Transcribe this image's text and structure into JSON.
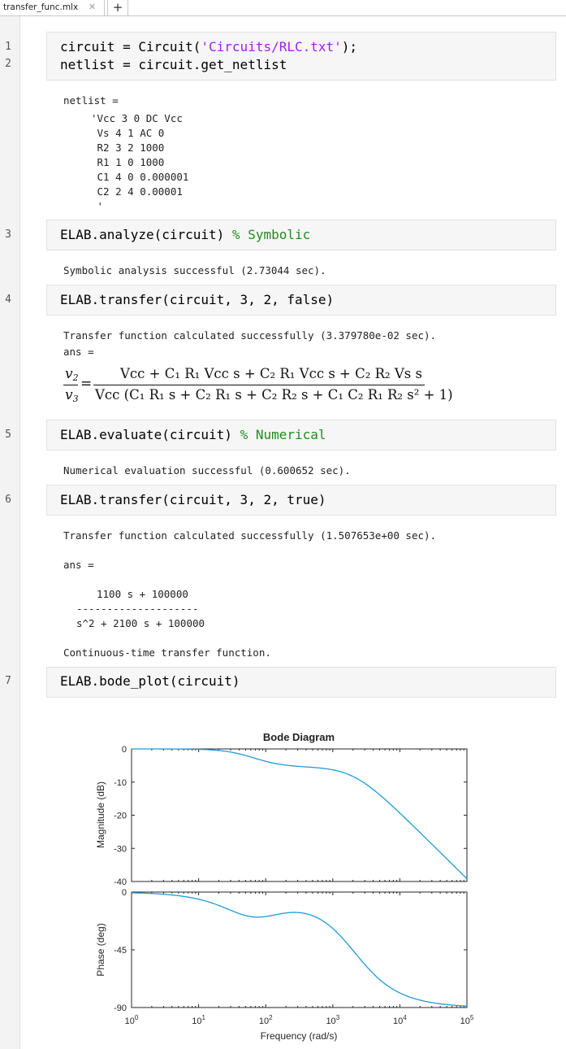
{
  "tab": {
    "label": "transfer_func.mlx",
    "close_glyph": "✕",
    "add_glyph": "+"
  },
  "lines": [
    {
      "num": "1"
    },
    {
      "num": "2"
    },
    {
      "num": "3"
    },
    {
      "num": "4"
    },
    {
      "num": "5"
    },
    {
      "num": "6"
    },
    {
      "num": "7"
    }
  ],
  "code": {
    "l1_a": "circuit = Circuit(",
    "l1_str": "'Circuits/RLC.txt'",
    "l1_b": ");",
    "l2": "netlist = circuit.get_netlist",
    "l3_a": "ELAB.analyze(circuit) ",
    "l3_cmt": "% Symbolic",
    "l4": "ELAB.transfer(circuit, 3, 2, false)",
    "l5_a": "ELAB.evaluate(circuit) ",
    "l5_cmt": "% Numerical",
    "l6": "ELAB.transfer(circuit, 3, 2, true)",
    "l7": "ELAB.bode_plot(circuit)"
  },
  "outputs": {
    "netlist_header": "netlist =",
    "netlist_body": "'Vcc 3 0 DC Vcc\n Vs 4 1 AC 0\n R2 3 2 1000\n R1 1 0 1000\n C1 4 0 0.000001\n C2 2 4 0.00001\n '",
    "symbolic_msg": "Symbolic analysis successful (2.73044 sec).",
    "transfer1_msg": "Transfer function calculated successfully (3.379780e-02 sec).",
    "ans1": "ans =",
    "numerical_msg": "Numerical evaluation successful (0.600652 sec).",
    "transfer2_msg": "Transfer function calculated successfully (1.507653e+00 sec).",
    "ans2": "ans =",
    "tf_num": "1100 s + 100000",
    "tf_bar": "--------------------",
    "tf_den": "s^2 + 2100 s + 100000",
    "tf_type": "Continuous-time transfer function."
  },
  "equation": {
    "lhs_num": "v",
    "lhs_num_sub": "2",
    "lhs_den": "v",
    "lhs_den_sub": "3",
    "equals": "=",
    "rhs_num": "Vcc + C₁ R₁ Vcc s + C₂ R₁ Vcc s + C₂ R₂ Vs s",
    "rhs_den": "Vcc (C₁ R₁ s + C₂ R₁ s + C₂ R₂ s + C₁ C₂ R₁ R₂ s² + 1)"
  },
  "chart_data": {
    "type": "line",
    "title": "Bode Diagram",
    "xlabel": "Frequency (rad/s)",
    "x_scale": "log",
    "xlim": [
      1,
      100000
    ],
    "x_ticks": [
      {
        "base": "10",
        "exp": "0"
      },
      {
        "base": "10",
        "exp": "1"
      },
      {
        "base": "10",
        "exp": "2"
      },
      {
        "base": "10",
        "exp": "3"
      },
      {
        "base": "10",
        "exp": "4"
      },
      {
        "base": "10",
        "exp": "5"
      }
    ],
    "line_color": "#1f9bd7",
    "transfer_function": {
      "numerator": [
        1100,
        100000
      ],
      "denominator": [
        1,
        2100,
        100000
      ]
    },
    "magnitude": {
      "ylabel": "Magnitude (dB)",
      "ylim": [
        -40,
        0
      ],
      "yticks": [
        "0",
        "-10",
        "-20",
        "-30",
        "-40"
      ],
      "points": [
        [
          1,
          0.0
        ],
        [
          10,
          -0.35
        ],
        [
          30,
          -2.4
        ],
        [
          100,
          -4.7
        ],
        [
          300,
          -5.4
        ],
        [
          1000,
          -6.8
        ],
        [
          3000,
          -11.8
        ],
        [
          10000,
          -20.5
        ],
        [
          30000,
          -30.0
        ],
        [
          100000,
          -40.5
        ]
      ]
    },
    "phase": {
      "ylabel": "Phase (deg)",
      "ylim": [
        -90,
        0
      ],
      "yticks": [
        "0",
        "-45",
        "-90"
      ],
      "points": [
        [
          1,
          -0.6
        ],
        [
          10,
          -5.4
        ],
        [
          30,
          -13.2
        ],
        [
          70,
          -16.2
        ],
        [
          300,
          -13.0
        ],
        [
          1000,
          -32.0
        ],
        [
          3000,
          -61.0
        ],
        [
          10000,
          -80.0
        ],
        [
          30000,
          -86.6
        ],
        [
          100000,
          -89.0
        ]
      ]
    }
  }
}
